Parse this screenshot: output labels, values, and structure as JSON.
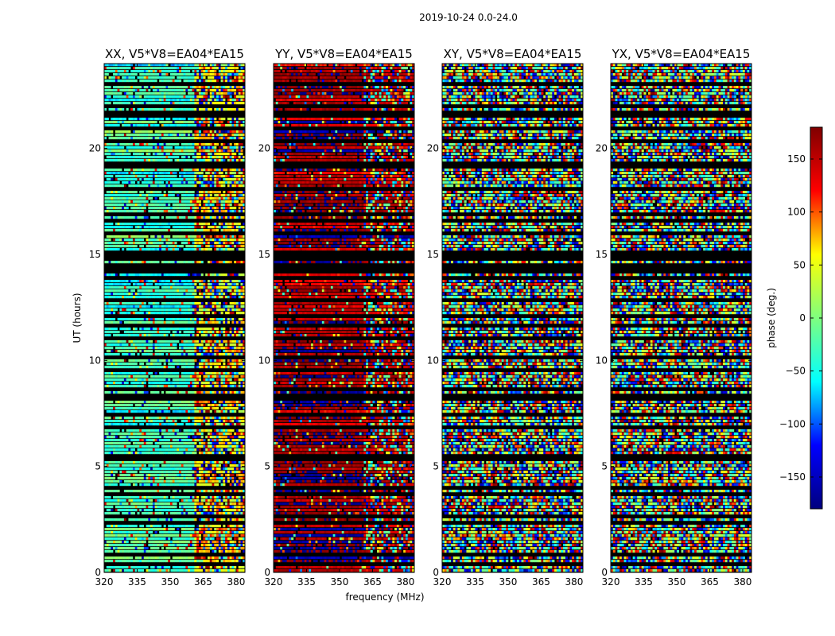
{
  "figure": {
    "suptitle": "2019-10-24 0.0-24.0",
    "xlabel": "frequency (MHz)",
    "ylabel": "UT (hours)"
  },
  "chart_data": {
    "type": "heatmap",
    "x_ticks": [
      "320",
      "335",
      "350",
      "365",
      "380"
    ],
    "x_tick_values": [
      320,
      335,
      350,
      365,
      380
    ],
    "xlim": [
      320,
      384
    ],
    "y_ticks": [
      "0",
      "5",
      "10",
      "15",
      "20"
    ],
    "y_tick_values": [
      0,
      5,
      10,
      15,
      20
    ],
    "ylim": [
      0,
      24
    ],
    "channel_break_mhz": 361,
    "panels": [
      {
        "id": "xx",
        "title": "XX, V5*V8=EA04*EA15",
        "low_band_phase": -30,
        "high_band_phase": 60,
        "coherence": 0.85
      },
      {
        "id": "yy",
        "title": "YY, V5*V8=EA04*EA15",
        "low_band_phase": 165,
        "high_band_phase": 150,
        "coherence": 0.9
      },
      {
        "id": "xy",
        "title": "XY, V5*V8=EA04*EA15",
        "low_band_phase": 0,
        "high_band_phase": 0,
        "coherence": 0.05
      },
      {
        "id": "yx",
        "title": "YX, V5*V8=EA04*EA15",
        "low_band_phase": 0,
        "high_band_phase": 0,
        "coherence": 0.05
      }
    ],
    "colorbar": {
      "label": "phase (deg.)",
      "ticks": [
        "150",
        "100",
        "50",
        "0",
        "−50",
        "−100",
        "−150"
      ],
      "tick_values": [
        150,
        100,
        50,
        0,
        -50,
        -100,
        -150
      ],
      "range": [
        -180,
        180
      ],
      "colormap": "jet",
      "stops": [
        "#00007f",
        "#0000ff",
        "#00ffff",
        "#7fff7f",
        "#ffff00",
        "#ff0000",
        "#7f0000"
      ]
    },
    "flagged_color": "#000000"
  }
}
